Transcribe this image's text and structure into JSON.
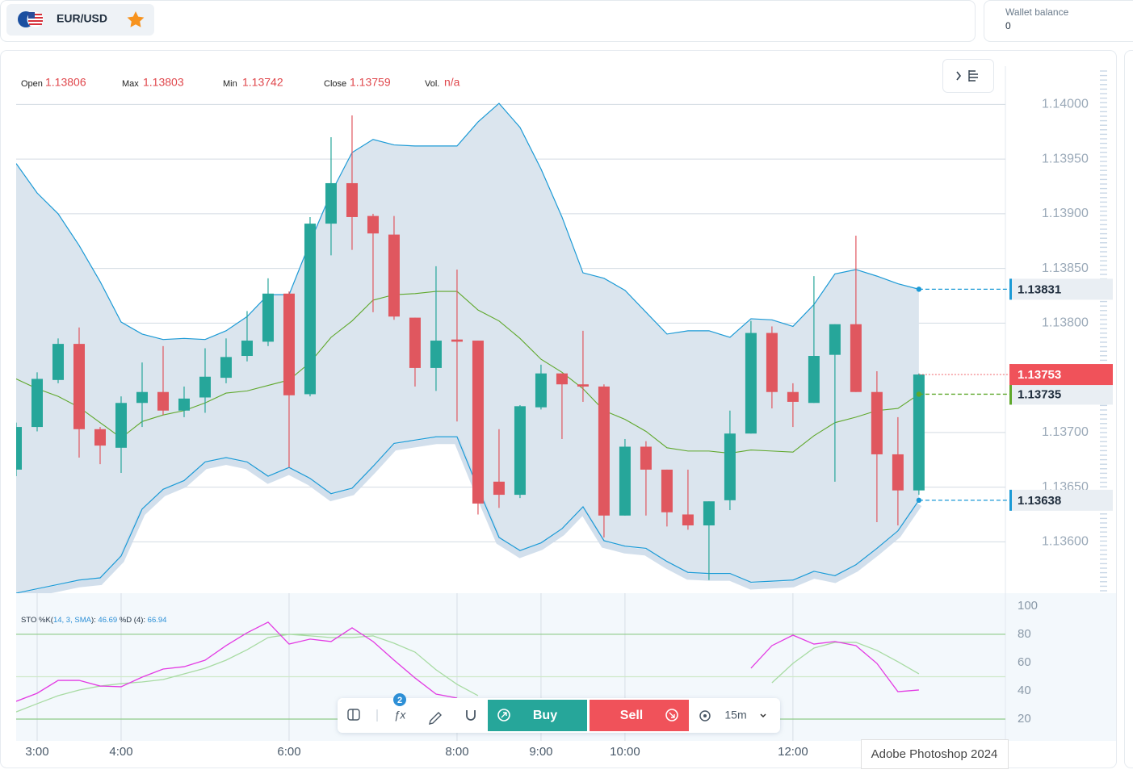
{
  "header": {
    "symbol": "EUR/USD",
    "wallet_label": "Wallet balance",
    "wallet_value": 0
  },
  "ohlc": [
    {
      "label": "Open",
      "value": 1.13806
    },
    {
      "label": "Max",
      "value": 1.13803
    },
    {
      "label": "Min",
      "value": 1.13742
    },
    {
      "label": "Close",
      "value": 1.13759
    },
    {
      "label": "Vol.",
      "value": "n/a"
    }
  ],
  "toolbar": {
    "badge": 2,
    "buy": "Buy",
    "sell": "Sell",
    "interval": "15m"
  },
  "tooltip": "Adobe Photoshop 2024",
  "chart_data": [
    {
      "type": "candlestick",
      "x": [
        2.75,
        3,
        3.25,
        3.5,
        3.75,
        4,
        4.25,
        4.5,
        4.75,
        5,
        5.25,
        5.5,
        5.75,
        6,
        6.25,
        6.5,
        6.75,
        7,
        7.25,
        7.5,
        7.75,
        8,
        8.25,
        8.5,
        8.75,
        9,
        9.25,
        9.5,
        9.75,
        10,
        10.25,
        10.5,
        10.75,
        11,
        11.25,
        11.5,
        11.75,
        12,
        12.25,
        12.5,
        12.75,
        13,
        13.25,
        13.5
      ],
      "xlim": [
        2.75,
        14.53
      ],
      "xticks": [
        {
          "value": 3,
          "label": "3:00"
        },
        {
          "value": 4,
          "label": "4:00"
        },
        {
          "value": 6,
          "label": "6:00"
        },
        {
          "value": 8,
          "label": "8:00"
        },
        {
          "value": 9,
          "label": "9:00"
        },
        {
          "value": 10,
          "label": "10:00"
        },
        {
          "value": 12,
          "label": "12:00"
        }
      ],
      "open": [
        1.13666,
        1.13705,
        1.13748,
        1.13781,
        1.13703,
        1.13686,
        1.13727,
        1.13737,
        1.1372,
        1.13732,
        1.1375,
        1.1377,
        1.13783,
        1.13827,
        1.13735,
        1.13891,
        1.13928,
        1.13898,
        1.13881,
        1.13805,
        1.13759,
        1.13785,
        1.13784,
        1.13655,
        1.13643,
        1.13723,
        1.13754,
        1.13744,
        1.13742,
        1.13624,
        1.13687,
        1.13666,
        1.13625,
        1.13615,
        1.13638,
        1.13699,
        1.13791,
        1.13737,
        1.13727,
        1.13771,
        1.13799,
        1.13737,
        1.1368,
        1.13647
      ],
      "high": [
        1.13709,
        1.13755,
        1.13786,
        1.13796,
        1.13705,
        1.13733,
        1.13764,
        1.13779,
        1.13742,
        1.13777,
        1.13786,
        1.13811,
        1.13841,
        1.13829,
        1.13897,
        1.1397,
        1.1399,
        1.139,
        1.13898,
        1.13805,
        1.13852,
        1.13849,
        1.13784,
        1.13703,
        1.13725,
        1.13762,
        1.13754,
        1.13793,
        1.13744,
        1.13694,
        1.13692,
        1.13666,
        1.13666,
        1.13637,
        1.1372,
        1.13802,
        1.13797,
        1.13745,
        1.13843,
        1.13799,
        1.1388,
        1.13756,
        1.13714,
        1.13754
      ],
      "low": [
        1.1366,
        1.13701,
        1.13745,
        1.13677,
        1.13671,
        1.13663,
        1.13705,
        1.13716,
        1.13714,
        1.13718,
        1.13745,
        1.13765,
        1.13779,
        1.13668,
        1.13733,
        1.13862,
        1.13867,
        1.1381,
        1.13803,
        1.13742,
        1.13738,
        1.1371,
        1.13625,
        1.13631,
        1.1364,
        1.13721,
        1.13694,
        1.13728,
        1.13604,
        1.13624,
        1.13624,
        1.13614,
        1.13611,
        1.13565,
        1.13629,
        1.13699,
        1.13722,
        1.13705,
        1.13727,
        1.13655,
        1.13737,
        1.13618,
        1.13615,
        1.13643
      ],
      "close": [
        1.13705,
        1.13749,
        1.13781,
        1.13703,
        1.13688,
        1.13727,
        1.13737,
        1.1372,
        1.13731,
        1.13751,
        1.13769,
        1.13784,
        1.13827,
        1.13734,
        1.13891,
        1.13928,
        1.13897,
        1.13882,
        1.13806,
        1.13759,
        1.13784,
        1.13783,
        1.13635,
        1.13643,
        1.13724,
        1.13754,
        1.13744,
        1.13742,
        1.13624,
        1.13687,
        1.13666,
        1.13627,
        1.13615,
        1.13637,
        1.13699,
        1.13791,
        1.13737,
        1.13728,
        1.1377,
        1.13799,
        1.13737,
        1.1368,
        1.13647,
        1.13753
      ],
      "up_color": "#26a69a",
      "down_color": "#e0575f",
      "bollinger": {
        "upper": [
          1.13946,
          1.13919,
          1.139,
          1.13871,
          1.13838,
          1.13801,
          1.1379,
          1.13785,
          1.13786,
          1.13785,
          1.13793,
          1.13806,
          1.13826,
          1.13826,
          1.13874,
          1.13919,
          1.13956,
          1.13968,
          1.13963,
          1.13962,
          1.13962,
          1.13962,
          1.13984,
          1.14001,
          1.13979,
          1.13941,
          1.13897,
          1.13846,
          1.13841,
          1.1383,
          1.1381,
          1.1379,
          1.13793,
          1.13793,
          1.13787,
          1.13804,
          1.13803,
          1.13797,
          1.13817,
          1.13845,
          1.13849,
          1.13843,
          1.13836,
          1.13831
        ],
        "middle": [
          1.13749,
          1.1374,
          1.13733,
          1.13723,
          1.13709,
          1.13695,
          1.1371,
          1.13716,
          1.1372,
          1.13727,
          1.13736,
          1.13738,
          1.13743,
          1.13748,
          1.13764,
          1.13787,
          1.13802,
          1.13821,
          1.13826,
          1.13827,
          1.13829,
          1.13829,
          1.13812,
          1.13802,
          1.13786,
          1.13767,
          1.13755,
          1.1374,
          1.1372,
          1.13712,
          1.13701,
          1.13686,
          1.13683,
          1.13683,
          1.13681,
          1.13684,
          1.13683,
          1.13682,
          1.13697,
          1.13709,
          1.13714,
          1.1372,
          1.13722,
          1.13735
        ],
        "lower": [
          1.13553,
          1.13557,
          1.13561,
          1.13565,
          1.13567,
          1.13587,
          1.1363,
          1.13648,
          1.13656,
          1.13673,
          1.13677,
          1.13673,
          1.1366,
          1.13668,
          1.13658,
          1.13644,
          1.13649,
          1.13669,
          1.1369,
          1.13693,
          1.13696,
          1.13696,
          1.13649,
          1.13604,
          1.13592,
          1.13599,
          1.13612,
          1.13632,
          1.13601,
          1.13596,
          1.13594,
          1.13582,
          1.13572,
          1.13571,
          1.13571,
          1.13563,
          1.13564,
          1.13565,
          1.13573,
          1.13569,
          1.13579,
          1.13594,
          1.1361,
          1.13638
        ],
        "band_color": "#1b9ad6",
        "middle_color": "#5fa82c",
        "fill": "#dbe5ee",
        "current_color": "#f0525a"
      },
      "ylim": [
        1.13553,
        1.14035
      ],
      "yticks": [
        {
          "value": 1.136,
          "label": "1.13600"
        },
        {
          "value": 1.1365,
          "label": "1.13650"
        },
        {
          "value": 1.137,
          "label": "1.13700"
        },
        {
          "value": 1.138,
          "label": "1.13800"
        },
        {
          "value": 1.1385,
          "label": "1.13850"
        },
        {
          "value": 1.139,
          "label": "1.13900"
        },
        {
          "value": 1.1395,
          "label": "1.13950"
        },
        {
          "value": 1.14,
          "label": "1.14000"
        }
      ],
      "grid": true
    },
    {
      "type": "line",
      "legend": {
        "prefix": "STO %K(",
        "params": "14, 3, SMA",
        "k_sep": "):",
        "k_value": 46.69,
        "d_label": "%D (4):",
        "d_value": 66.94
      },
      "ylim": [
        4.6,
        109.1
      ],
      "yticks": [
        20,
        40,
        60,
        80,
        100
      ],
      "levels": [
        80,
        50,
        20
      ],
      "level_colors": [
        "#8fcc88",
        "#cfe8c8",
        "#8fcc88"
      ],
      "series": [
        {
          "color": "#e33be3",
          "values": [
            32.6,
            38.3,
            47.4,
            47.4,
            43.4,
            42.9,
            49.7,
            55.4,
            57.1,
            61.7,
            72,
            81.1,
            88.6,
            73.1,
            76.6,
            74.9,
            84.6,
            74.9,
            61.7,
            49.1,
            37.7,
            34.9,
            null,
            null,
            null,
            null,
            null,
            null,
            null,
            null,
            null,
            null,
            null,
            null,
            null,
            56,
            72,
            79.4,
            73.1,
            74.9,
            72,
            59.4,
            39.4,
            40.6
          ]
        },
        {
          "color": "#a8dba3",
          "values": [
            25.1,
            30.9,
            36.6,
            40.6,
            43.4,
            45.1,
            46.3,
            48,
            52,
            56,
            61.7,
            69.1,
            77.7,
            80,
            78.9,
            77.7,
            77.7,
            78.9,
            73.7,
            67.4,
            54.9,
            44.6,
            36.6,
            null,
            null,
            null,
            null,
            null,
            null,
            null,
            null,
            null,
            null,
            null,
            null,
            null,
            45.7,
            59.4,
            70.3,
            74.3,
            74.3,
            68.6,
            60.6,
            52
          ]
        }
      ]
    }
  ]
}
